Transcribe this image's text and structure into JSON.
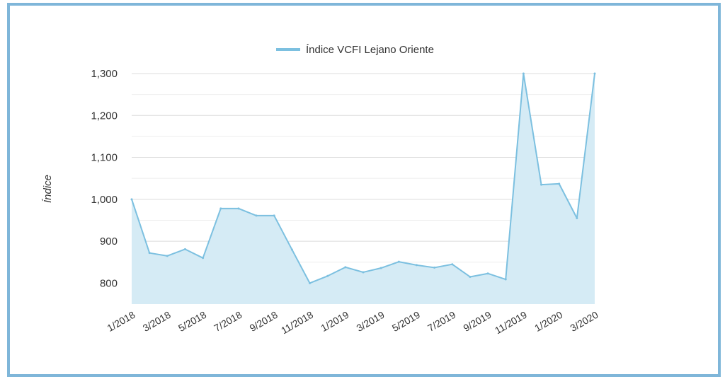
{
  "chart_data": {
    "type": "area",
    "title": "",
    "ylabel": "Índice",
    "xlabel": "",
    "ylim": [
      750,
      1300
    ],
    "yticks": [
      800,
      900,
      1000,
      1100,
      1200,
      1300
    ],
    "ytick_labels": [
      "800",
      "900",
      "1,000",
      "1,100",
      "1,200",
      "1,300"
    ],
    "x": [
      "1/2018",
      "2/2018",
      "3/2018",
      "4/2018",
      "5/2018",
      "6/2018",
      "7/2018",
      "8/2018",
      "9/2018",
      "10/2018",
      "11/2018",
      "12/2018",
      "1/2019",
      "2/2019",
      "3/2019",
      "4/2019",
      "5/2019",
      "6/2019",
      "7/2019",
      "8/2019",
      "9/2019",
      "10/2019",
      "11/2019",
      "12/2019",
      "1/2020",
      "2/2020",
      "3/2020"
    ],
    "xtick_labels": [
      "1/2018",
      "3/2018",
      "5/2018",
      "7/2018",
      "9/2018",
      "11/2018",
      "1/2019",
      "3/2019",
      "5/2019",
      "7/2019",
      "9/2019",
      "11/2019",
      "1/2020",
      "3/2020"
    ],
    "series": [
      {
        "name": "Índice VCFI Lejano Oriente",
        "color": "#7cc0e0",
        "fill": "#d5ebf5",
        "values": [
          1000,
          872,
          865,
          881,
          860,
          978,
          978,
          961,
          961,
          880,
          800,
          817,
          838,
          826,
          836,
          851,
          843,
          837,
          845,
          815,
          823,
          809,
          1300,
          1035,
          1037,
          955,
          1300
        ]
      }
    ],
    "grid": true,
    "legend_position": "top-center"
  }
}
